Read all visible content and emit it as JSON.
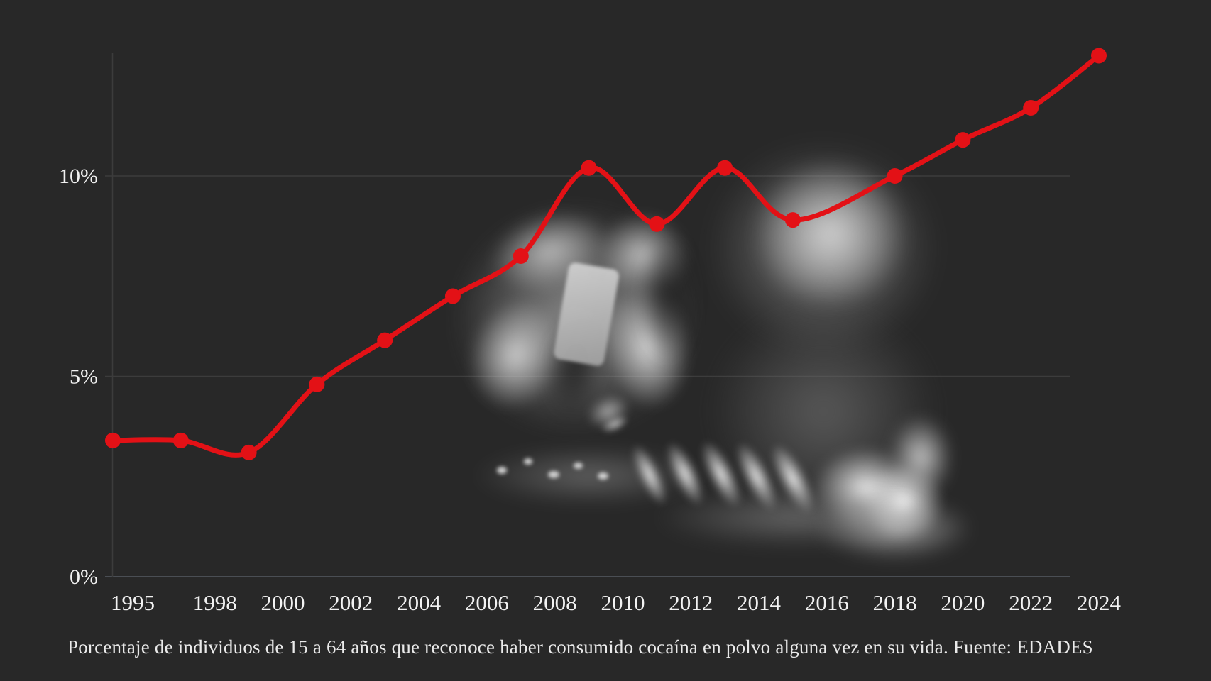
{
  "page": {
    "background_color": "#282828"
  },
  "chart_data": {
    "type": "line",
    "title": "",
    "x": [
      1995,
      1997,
      1999,
      2001,
      2003,
      2005,
      2007,
      2009,
      2011,
      2013,
      2015,
      2018,
      2020,
      2022,
      2024
    ],
    "values": [
      3.4,
      3.4,
      3.1,
      4.8,
      5.9,
      7.0,
      8.0,
      10.2,
      8.8,
      10.2,
      8.9,
      10.0,
      10.9,
      11.7,
      13.0
    ],
    "unit": "%",
    "x_tick_years": [
      1995,
      1998,
      2000,
      2002,
      2004,
      2006,
      2008,
      2010,
      2012,
      2014,
      2016,
      2018,
      2020,
      2022,
      2024
    ],
    "y_ticks": [
      {
        "value": 0,
        "label": "0%"
      },
      {
        "value": 5,
        "label": "5%"
      },
      {
        "value": 10,
        "label": "10%"
      }
    ],
    "xlim": [
      1995,
      2024
    ],
    "ylim": [
      0,
      13.6
    ],
    "grid": "horizontal-only",
    "legend_position": "none",
    "line_color": "#e31116",
    "marker": "filled-circle",
    "caption": "Porcentaje de individuos de 15 a 64 años que reconoce haber consumido cocaína en polvo alguna vez en su vida. Fuente: EDADES",
    "background_photo": "blurred-grayscale-photo-of-hand-holding-rolled-note-over-lines-of-white-powder"
  },
  "colors": {
    "line": "#e31116",
    "gridline": "#3c3c3c",
    "baseline": "#4a4e54",
    "tick_text": "#f2f2f2",
    "caption_text": "#eaeaea"
  }
}
